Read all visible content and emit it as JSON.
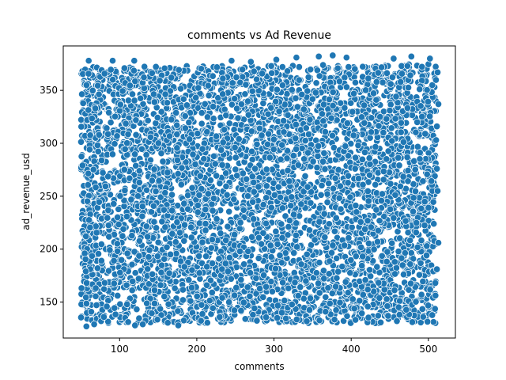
{
  "chart_data": {
    "type": "scatter",
    "title": "comments vs Ad Revenue",
    "xlabel": "comments",
    "ylabel": "ad_revenue_usd",
    "xlim": [
      27,
      535
    ],
    "ylim": [
      116,
      392
    ],
    "xticks": [
      100,
      200,
      300,
      400,
      500
    ],
    "yticks": [
      150,
      200,
      250,
      300,
      350
    ],
    "grid": false,
    "marker_color": "#1f77b4",
    "marker_edge_color": "#ffffff",
    "data_region": {
      "x_range": [
        50,
        510
      ],
      "y_range": [
        130,
        375
      ]
    },
    "outliers": [
      [
        91,
        378
      ],
      [
        119,
        378
      ],
      [
        303,
        379
      ],
      [
        329,
        381
      ],
      [
        358,
        382
      ],
      [
        376,
        383
      ],
      [
        394,
        381
      ],
      [
        455,
        380
      ],
      [
        478,
        382
      ],
      [
        502,
        380
      ],
      [
        512,
        367
      ],
      [
        513,
        337
      ],
      [
        511,
        316
      ],
      [
        510,
        303
      ],
      [
        511,
        276
      ],
      [
        512,
        255
      ],
      [
        513,
        206
      ],
      [
        511,
        181
      ],
      [
        509,
        168
      ],
      [
        57,
        127
      ],
      [
        67,
        129
      ],
      [
        120,
        128
      ],
      [
        130,
        129
      ],
      [
        176,
        128
      ],
      [
        60,
        378
      ],
      [
        245,
        378
      ],
      [
        270,
        377
      ]
    ]
  }
}
